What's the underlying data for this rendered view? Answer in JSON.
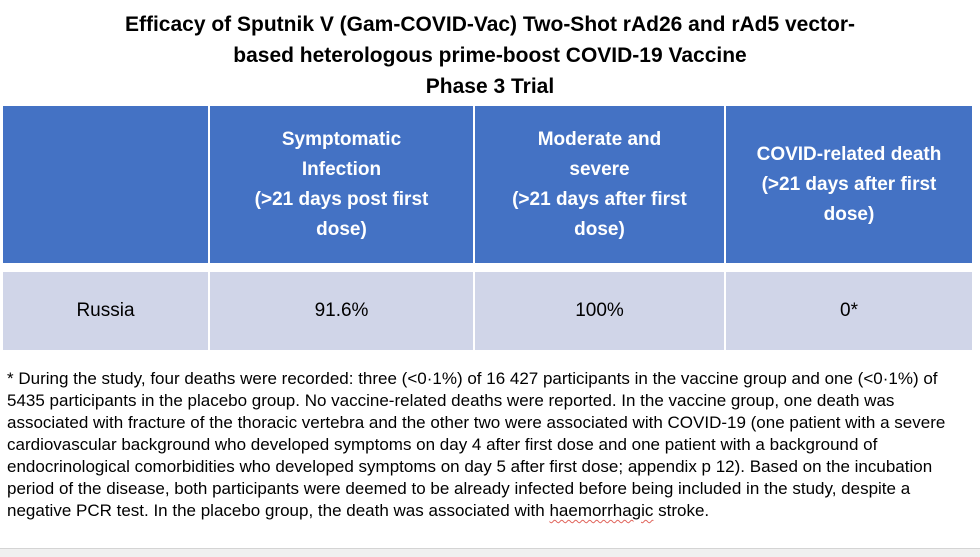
{
  "title": {
    "text": "Efficacy of Sputnik V (Gam-COVID-Vac) Two-Shot rAd26 and rAd5 vector-\nbased heterologous prime-boost COVID-19 Vaccine\nPhase 3 Trial"
  },
  "table": {
    "header": {
      "col0": "",
      "col1": "Symptomatic\nInfection\n(>21 days post first\ndose)",
      "col2": "Moderate and\nsevere\n(>21 days after first\ndose)",
      "col3": "COVID-related death\n(>21 days after first\ndose)"
    },
    "row": {
      "country": "Russia",
      "symptomatic_infection": "91.6%",
      "moderate_and_severe": "100%",
      "covid_related_death": "0*"
    }
  },
  "footnote": {
    "before": "* During the study, four deaths were recorded: three (<0·1%) of 16 427 participants in the vaccine group and one (<0·1%) of 5435 participants in the placebo group. No vaccine-related deaths were reported. In the vaccine group, one death was associated with fracture of the thoracic vertebra and the other two were associated with COVID-19 (one patient with a severe cardiovascular background who developed symptoms on day 4 after first dose and one patient with a background of endocrinological comorbidities who developed symptoms on day 5 after first dose; appendix p 12). Based on the incubation period of the disease, both participants were deemed to be already infected before being included in the study, despite a negative PCR test. In the placebo group, the death was associated with ",
    "misspelled_word": "haemorrhagic",
    "after": " stroke."
  },
  "colors": {
    "header_bg": "#4472C4",
    "header_text": "#FFFFFF",
    "row_bg": "#D0D5E8",
    "squiggle": "#E0635A",
    "scrollbar_bg": "#F0F0F0"
  }
}
